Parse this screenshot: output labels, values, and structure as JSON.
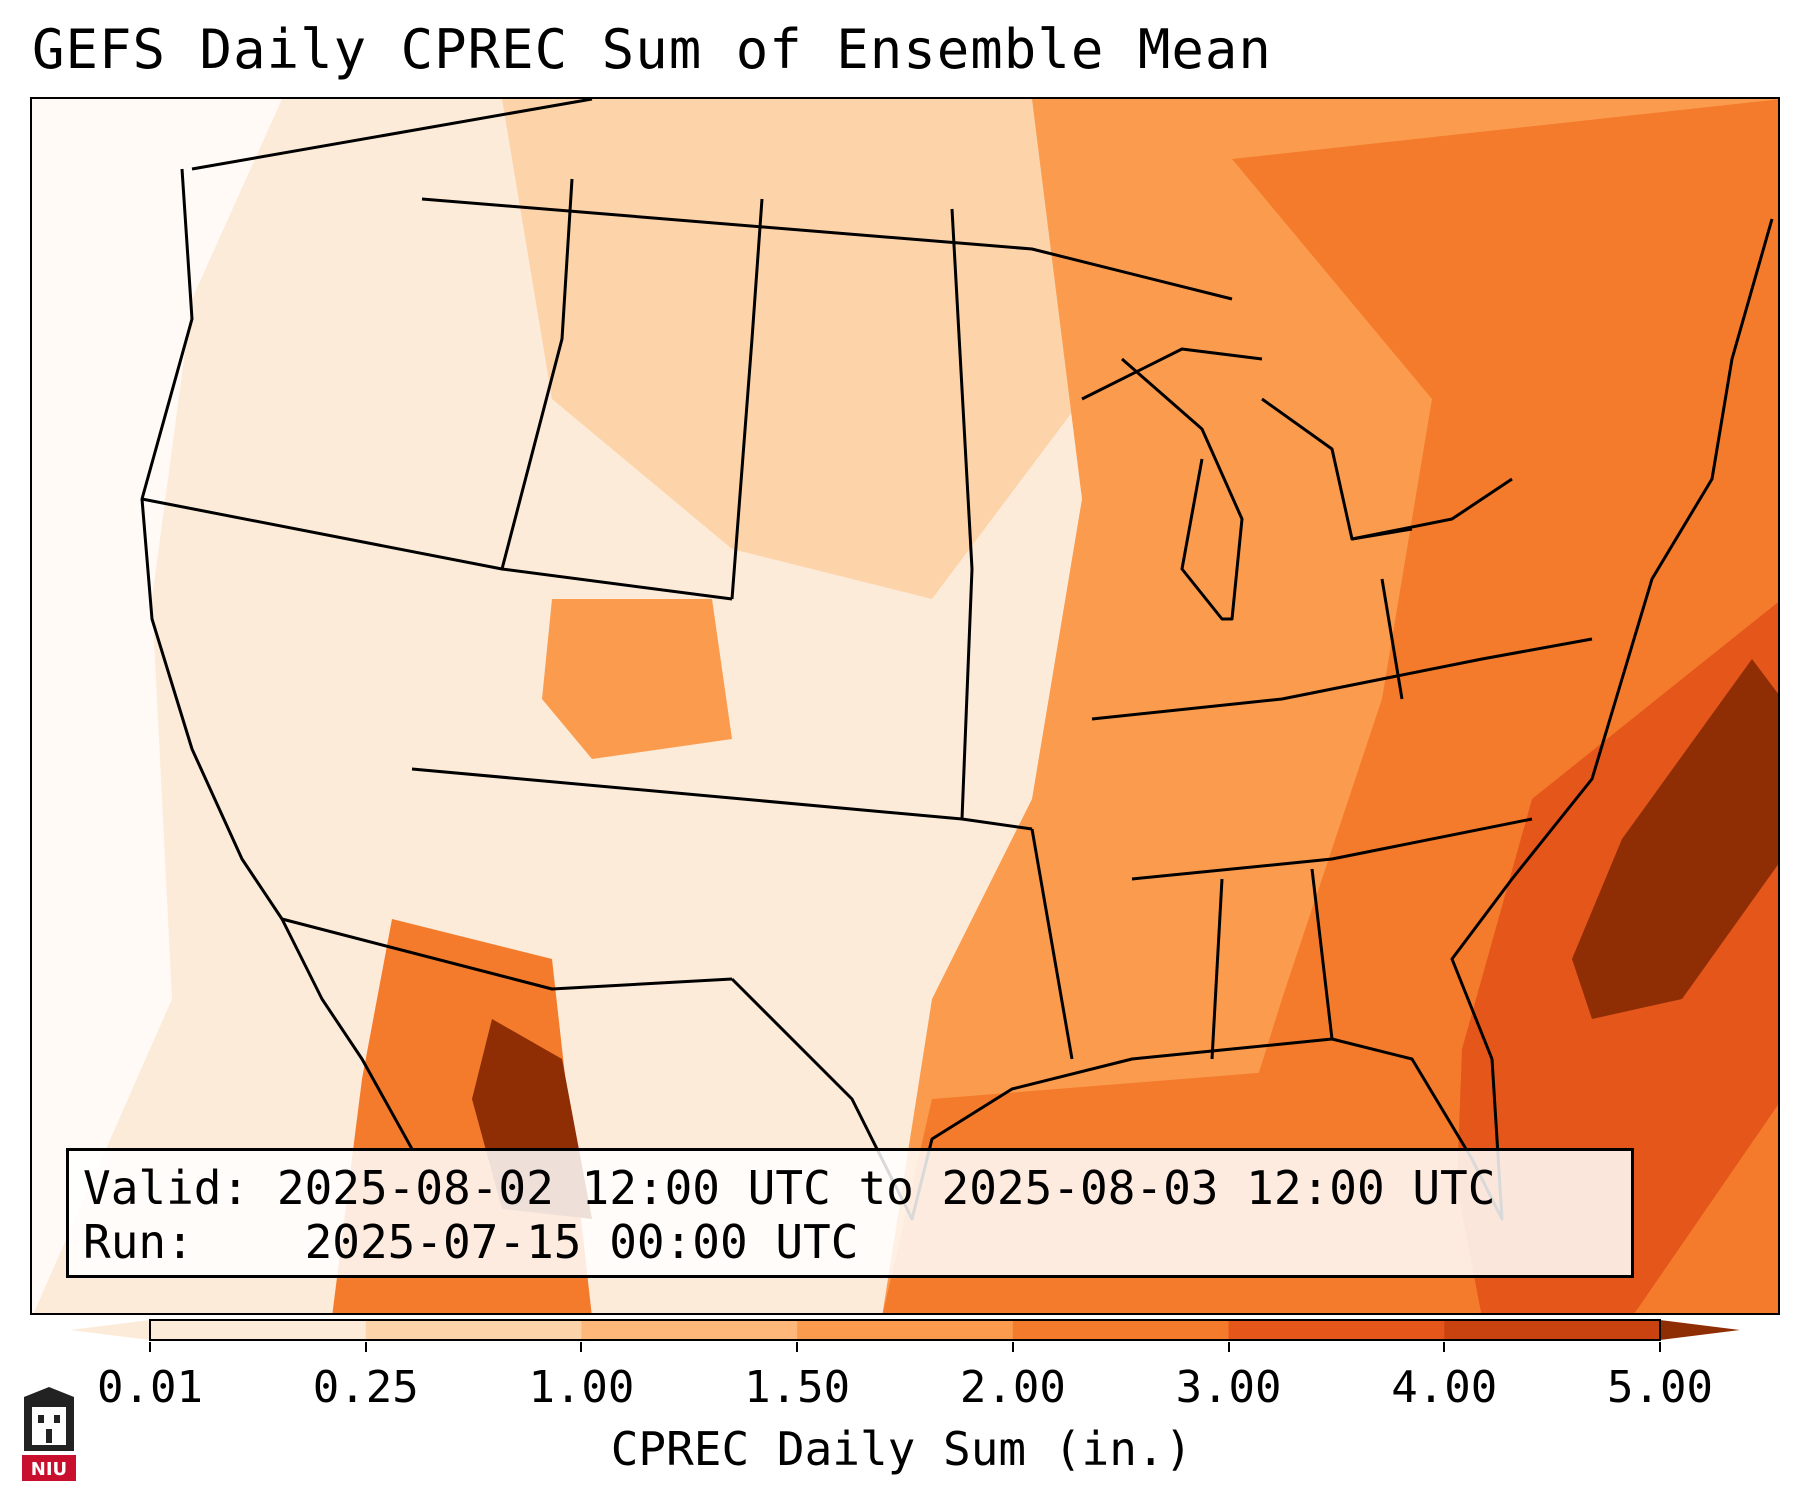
{
  "title": "GEFS Daily CPREC Sum of Ensemble Mean",
  "info": {
    "valid_label": "Valid:",
    "valid_value": "2025-08-02 12:00 UTC to 2025-08-03 12:00 UTC",
    "run_label": "Run:",
    "run_value": "2025-07-15 00:00 UTC"
  },
  "colorbar": {
    "label": "CPREC Daily Sum (in.)",
    "ticks": [
      "0.01",
      "0.25",
      "1.00",
      "1.50",
      "2.00",
      "3.00",
      "4.00",
      "5.00"
    ],
    "colors": [
      "#fdebd9",
      "#fdd4aa",
      "#fdb87a",
      "#fb9b4e",
      "#f47b2c",
      "#e5561a",
      "#c94310",
      "#8f2d05"
    ]
  },
  "logo": {
    "text": "NIU",
    "colors": {
      "red": "#c8102e",
      "dark": "#222222"
    }
  }
}
